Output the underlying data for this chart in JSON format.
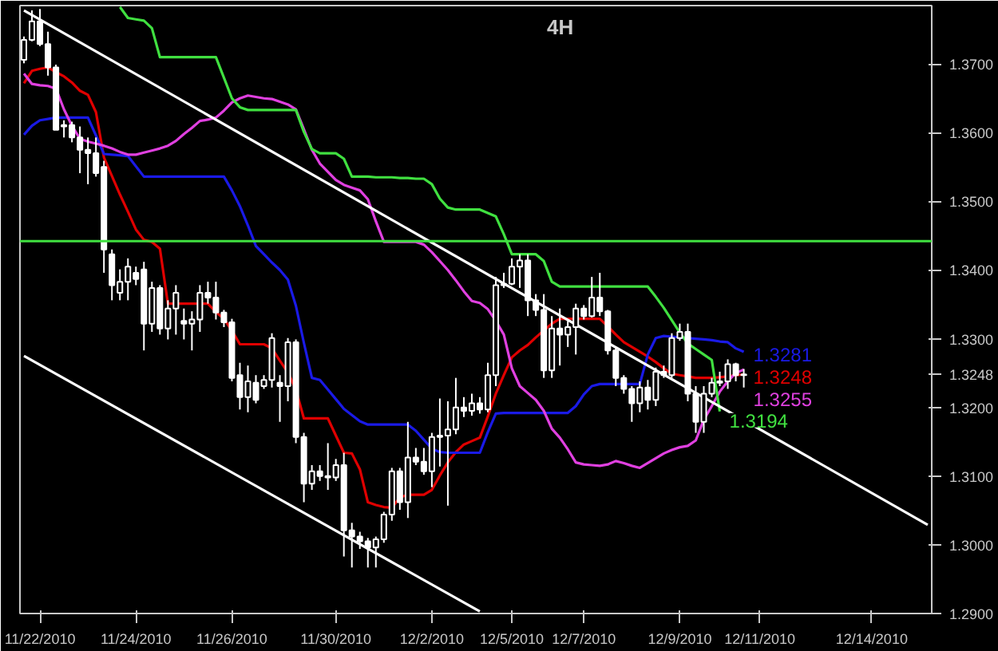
{
  "chart_data": {
    "type": "candlestick",
    "categories": [
      null,
      null,
      "11/22/2010",
      null,
      null,
      null,
      null,
      null,
      null,
      null,
      null,
      null,
      null,
      null,
      "11/24/2010",
      null,
      null,
      null,
      null,
      null,
      null,
      null,
      null,
      null,
      null,
      null,
      "11/26/2010",
      null,
      null,
      null,
      null,
      null,
      null,
      null,
      null,
      null,
      null,
      null,
      null,
      "11/30/2010",
      null,
      null,
      null,
      null,
      null,
      null,
      null,
      null,
      null,
      null,
      null,
      "12/2/2010",
      null,
      null,
      null,
      null,
      null,
      null,
      null,
      null,
      null,
      "12/5/2010",
      null,
      null,
      null,
      null,
      null,
      null,
      null,
      null,
      "12/7/2010",
      null,
      null,
      null,
      null,
      null,
      null,
      null,
      null,
      null,
      null,
      null,
      "12/9/2010",
      null,
      null,
      null,
      null,
      null,
      null,
      null,
      null,
      null,
      "12/11/2010",
      null,
      null,
      null,
      null,
      null,
      null,
      null,
      null,
      null,
      null,
      null,
      null,
      null,
      "12/14/2010",
      null,
      null,
      null,
      null,
      null,
      null,
      null
    ],
    "ohlc": [
      [
        1.3706,
        1.374,
        1.3701,
        1.3735
      ],
      [
        1.3735,
        1.3778,
        1.3733,
        1.3762
      ],
      [
        1.3762,
        1.378,
        1.3726,
        1.3729
      ],
      [
        1.3729,
        1.3747,
        1.3683,
        1.3695
      ],
      [
        1.3695,
        1.3699,
        1.3604,
        1.3604
      ],
      [
        1.3609,
        1.3618,
        1.3593,
        1.3611
      ],
      [
        1.3611,
        1.3616,
        1.3586,
        1.3593
      ],
      [
        1.3593,
        1.3609,
        1.3541,
        1.3575
      ],
      [
        1.3575,
        1.3593,
        1.3525,
        1.357
      ],
      [
        1.357,
        1.3593,
        1.3536,
        1.3541
      ],
      [
        1.355,
        1.3559,
        1.3396,
        1.343
      ],
      [
        1.3423,
        1.343,
        1.3356,
        1.3378
      ],
      [
        1.3367,
        1.3401,
        1.3356,
        1.3383
      ],
      [
        1.3383,
        1.3417,
        1.3356,
        1.3405
      ],
      [
        1.3396,
        1.3405,
        1.3378,
        1.3387
      ],
      [
        1.3401,
        1.3412,
        1.3283,
        1.3322
      ],
      [
        1.3322,
        1.3383,
        1.331,
        1.3374
      ],
      [
        1.3374,
        1.3378,
        1.3306,
        1.3315
      ],
      [
        1.3315,
        1.3356,
        1.3299,
        1.3344
      ],
      [
        1.3344,
        1.3378,
        1.3306,
        1.3367
      ],
      [
        1.3326,
        1.3344,
        1.3299,
        1.3322
      ],
      [
        1.3322,
        1.334,
        1.3283,
        1.3328
      ],
      [
        1.3328,
        1.3378,
        1.331,
        1.3367
      ],
      [
        1.3367,
        1.3383,
        1.3351,
        1.336
      ],
      [
        1.336,
        1.3383,
        1.3328,
        1.3338
      ],
      [
        1.3338,
        1.3342,
        1.3317,
        1.3324
      ],
      [
        1.3324,
        1.3329,
        1.3238,
        1.3243
      ],
      [
        1.3247,
        1.3265,
        1.3197,
        1.3215
      ],
      [
        1.3215,
        1.3261,
        1.3193,
        1.3238
      ],
      [
        1.3236,
        1.3247,
        1.3206,
        1.3211
      ],
      [
        1.3231,
        1.3247,
        1.3227,
        1.324
      ],
      [
        1.324,
        1.3308,
        1.3229,
        1.3301
      ],
      [
        1.3236,
        1.3247,
        1.3179,
        1.3231
      ],
      [
        1.3231,
        1.3301,
        1.3209,
        1.3295
      ],
      [
        1.3295,
        1.3299,
        1.3148,
        1.3157
      ],
      [
        1.3157,
        1.3163,
        1.3062,
        1.3089
      ],
      [
        1.3089,
        1.3116,
        1.308,
        1.3107
      ],
      [
        1.3107,
        1.3116,
        1.3093,
        1.31
      ],
      [
        1.31,
        1.3148,
        1.308,
        1.3098
      ],
      [
        1.3098,
        1.3125,
        1.3093,
        1.3116
      ],
      [
        1.3116,
        1.3134,
        1.2983,
        1.3021
      ],
      [
        1.3021,
        1.3032,
        1.2967,
        1.3012
      ],
      [
        1.3012,
        1.3019,
        1.2994,
        1.3005
      ],
      [
        1.3005,
        1.301,
        1.2967,
        1.2996
      ],
      [
        1.2996,
        1.3012,
        1.2967,
        1.3008
      ],
      [
        1.3008,
        1.3048,
        1.3003,
        1.3044
      ],
      [
        1.3044,
        1.3112,
        1.3035,
        1.3107
      ],
      [
        1.3107,
        1.3112,
        1.3051,
        1.3062
      ],
      [
        1.3062,
        1.3179,
        1.3039,
        1.3127
      ],
      [
        1.3127,
        1.3141,
        1.3116,
        1.3121
      ],
      [
        1.3121,
        1.3141,
        1.3102,
        1.3107
      ],
      [
        1.3107,
        1.3163,
        1.3084,
        1.3157
      ],
      [
        1.3157,
        1.3213,
        1.3114,
        1.3159
      ],
      [
        1.3159,
        1.3209,
        1.3057,
        1.3168
      ],
      [
        1.3168,
        1.3243,
        1.3161,
        1.32
      ],
      [
        1.32,
        1.3215,
        1.3186,
        1.3195
      ],
      [
        1.3195,
        1.322,
        1.3188,
        1.3206
      ],
      [
        1.3206,
        1.3215,
        1.3191,
        1.3197
      ],
      [
        1.3197,
        1.3265,
        1.3193,
        1.3247
      ],
      [
        1.3247,
        1.339,
        1.3231,
        1.3378
      ],
      [
        1.3378,
        1.3396,
        1.3374,
        1.338
      ],
      [
        1.338,
        1.3417,
        1.3378,
        1.3405
      ],
      [
        1.3405,
        1.3423,
        1.3374,
        1.3414
      ],
      [
        1.3414,
        1.3423,
        1.3333,
        1.3356
      ],
      [
        1.3356,
        1.3365,
        1.3333,
        1.3342
      ],
      [
        1.3342,
        1.3365,
        1.3243,
        1.3254
      ],
      [
        1.3254,
        1.3333,
        1.3243,
        1.3315
      ],
      [
        1.3315,
        1.3344,
        1.3261,
        1.3306
      ],
      [
        1.3306,
        1.3326,
        1.3288,
        1.3317
      ],
      [
        1.3317,
        1.3351,
        1.3277,
        1.3344
      ],
      [
        1.3344,
        1.3349,
        1.3328,
        1.3333
      ],
      [
        1.3333,
        1.339,
        1.3331,
        1.336
      ],
      [
        1.336,
        1.3396,
        1.3333,
        1.334
      ],
      [
        1.334,
        1.3342,
        1.3277,
        1.3283
      ],
      [
        1.3283,
        1.3288,
        1.3231,
        1.3243
      ],
      [
        1.3243,
        1.3247,
        1.322,
        1.3227
      ],
      [
        1.3227,
        1.3231,
        1.3179,
        1.3206
      ],
      [
        1.3206,
        1.3238,
        1.3193,
        1.3229
      ],
      [
        1.3229,
        1.324,
        1.3197,
        1.3211
      ],
      [
        1.3211,
        1.3258,
        1.3202,
        1.3252
      ],
      [
        1.3252,
        1.3261,
        1.3243,
        1.3247
      ],
      [
        1.3247,
        1.3308,
        1.3243,
        1.3301
      ],
      [
        1.3301,
        1.3322,
        1.3297,
        1.331
      ],
      [
        1.331,
        1.3322,
        1.3209,
        1.322
      ],
      [
        1.322,
        1.3231,
        1.3163,
        1.3179
      ],
      [
        1.3179,
        1.3231,
        1.3163,
        1.322
      ],
      [
        1.322,
        1.3243,
        1.3215,
        1.3236
      ],
      [
        1.3236,
        1.3252,
        1.3231,
        1.3238
      ],
      [
        1.3238,
        1.327,
        1.3227,
        1.3263
      ],
      [
        1.3263,
        1.3265,
        1.3238,
        1.3247
      ],
      [
        1.3247,
        1.3256,
        1.3229,
        1.3248
      ],
      null,
      null,
      null,
      null,
      null,
      null,
      null,
      null,
      null,
      null,
      null,
      null,
      null,
      null,
      null,
      null,
      null,
      null,
      null,
      null,
      null,
      null,
      null
    ],
    "series": [
      {
        "type": "line",
        "color": "#e00000",
        "values": [
          1.3672,
          1.369,
          1.3693,
          1.3695,
          1.3688,
          1.3682,
          1.3673,
          1.3661,
          1.3655,
          1.363,
          1.3564,
          1.3537,
          1.351,
          1.3485,
          1.3459,
          1.3444,
          1.3441,
          1.3431,
          1.3351,
          1.3351,
          1.3351,
          1.3351,
          1.3351,
          1.3351,
          1.3339,
          1.3329,
          1.3312,
          1.3292,
          1.3292,
          1.3292,
          1.3292,
          1.3286,
          1.3268,
          1.3251,
          1.3226,
          1.3184,
          1.3184,
          1.3184,
          1.3184,
          1.3159,
          1.3134,
          1.3133,
          1.311,
          1.3062,
          1.3058,
          1.3055,
          1.3054,
          1.3069,
          1.3073,
          1.3073,
          1.3073,
          1.308,
          1.3101,
          1.312,
          1.3135,
          1.3146,
          1.3151,
          1.3156,
          1.3187,
          1.322,
          1.3247,
          1.3273,
          1.3283,
          1.3291,
          1.3302,
          1.3312,
          1.3322,
          1.3329,
          1.3329,
          1.3329,
          1.3329,
          1.3329,
          1.3329,
          1.3318,
          1.3306,
          1.3295,
          1.3288,
          1.3281,
          1.3274,
          1.3266,
          1.3257,
          1.3249,
          1.3247,
          1.3245,
          1.3243,
          1.3243,
          1.3243,
          1.3244,
          1.3245,
          1.3247,
          1.3248,
          null,
          null,
          null,
          null,
          null,
          null,
          null,
          null,
          null,
          null,
          null,
          null,
          null,
          null,
          null,
          null,
          null,
          null,
          null,
          null,
          null,
          null,
          null
        ],
        "value_labels": [
          null,
          null,
          null,
          null,
          null,
          null,
          null,
          null,
          null,
          null,
          null,
          null,
          null,
          null,
          null,
          null,
          null,
          null,
          null,
          null,
          null,
          null,
          null,
          null,
          null,
          null,
          null,
          null,
          null,
          null,
          null,
          null,
          null,
          null,
          null,
          null,
          null,
          null,
          null,
          null,
          null,
          null,
          null,
          null,
          null,
          null,
          null,
          null,
          null,
          null,
          null,
          null,
          null,
          null,
          null,
          null,
          null,
          null,
          null,
          null,
          null,
          null,
          null,
          null,
          null,
          null,
          null,
          null,
          null,
          null,
          null,
          null,
          null,
          null,
          null,
          null,
          null,
          null,
          null,
          null,
          null,
          null,
          null,
          null,
          null,
          null,
          null,
          null,
          null,
          null,
          "1.3248",
          null,
          null,
          null,
          null,
          null,
          null,
          null,
          null,
          null,
          null,
          null,
          null,
          null,
          null,
          null,
          null,
          null,
          null,
          null,
          null,
          null,
          null,
          null
        ]
      },
      {
        "type": "line",
        "color": "#1a1ae6",
        "values": [
          1.3597,
          1.361,
          1.3618,
          1.362,
          1.3622,
          1.3622,
          1.3622,
          1.3622,
          1.3622,
          1.3596,
          1.3569,
          1.3568,
          1.3567,
          1.3566,
          1.3551,
          1.3536,
          1.3536,
          1.3536,
          1.3536,
          1.3536,
          1.3536,
          1.3536,
          1.3536,
          1.3536,
          1.3536,
          1.3536,
          1.3516,
          1.3493,
          1.3465,
          1.3435,
          1.3423,
          1.3411,
          1.34,
          1.3386,
          1.3348,
          1.3294,
          1.3243,
          1.324,
          1.3226,
          1.3212,
          1.3198,
          1.3189,
          1.318,
          1.3175,
          1.3175,
          1.3175,
          1.3175,
          1.3175,
          1.3175,
          1.3166,
          1.3153,
          1.314,
          1.3135,
          1.3134,
          1.3134,
          1.3134,
          1.3134,
          1.3134,
          1.3164,
          1.3191,
          1.3192,
          1.3192,
          1.3192,
          1.3192,
          1.3192,
          1.3192,
          1.3192,
          1.3192,
          1.3192,
          1.3202,
          1.3219,
          1.3231,
          1.3234,
          1.3234,
          1.3234,
          1.3234,
          1.3234,
          1.3234,
          1.3277,
          1.3301,
          1.3304,
          1.3303,
          1.3302,
          1.3301,
          1.33,
          1.3299,
          1.3298,
          1.3296,
          1.3295,
          1.3286,
          1.3281,
          null,
          null,
          null,
          null,
          null,
          null,
          null,
          null,
          null,
          null,
          null,
          null,
          null,
          null,
          null,
          null,
          null,
          null,
          null,
          null,
          null,
          null,
          null
        ],
        "value_labels": [
          null,
          null,
          null,
          null,
          null,
          null,
          null,
          null,
          null,
          null,
          null,
          null,
          null,
          null,
          null,
          null,
          null,
          null,
          null,
          null,
          null,
          null,
          null,
          null,
          null,
          null,
          null,
          null,
          null,
          null,
          null,
          null,
          null,
          null,
          null,
          null,
          null,
          null,
          null,
          null,
          null,
          null,
          null,
          null,
          null,
          null,
          null,
          null,
          null,
          null,
          null,
          null,
          null,
          null,
          null,
          null,
          null,
          null,
          null,
          null,
          null,
          null,
          null,
          null,
          null,
          null,
          null,
          null,
          null,
          null,
          null,
          null,
          null,
          null,
          null,
          null,
          null,
          null,
          null,
          null,
          null,
          null,
          null,
          null,
          null,
          null,
          null,
          null,
          null,
          null,
          "1.3281",
          null,
          null,
          null,
          null,
          null,
          null,
          null,
          null,
          null,
          null,
          null,
          null,
          null,
          null,
          null,
          null,
          null,
          null,
          null,
          null,
          null,
          null,
          null
        ]
      },
      {
        "type": "line",
        "color": "#e040e0",
        "values": [
          1.3686,
          1.3671,
          1.3669,
          1.3668,
          1.3664,
          1.3634,
          1.361,
          1.3591,
          1.3587,
          1.3584,
          1.3581,
          1.3577,
          1.3572,
          1.3568,
          1.3568,
          1.3571,
          1.3574,
          1.3577,
          1.3581,
          1.3588,
          1.3598,
          1.3607,
          1.3617,
          1.3619,
          1.3622,
          1.3632,
          1.3644,
          1.365,
          1.3654,
          1.3652,
          1.365,
          1.3649,
          1.3645,
          1.3641,
          1.3634,
          1.3605,
          1.3575,
          1.3555,
          1.3543,
          1.3531,
          1.3524,
          1.352,
          1.3516,
          1.3503,
          1.3471,
          1.3441,
          1.3441,
          1.3441,
          1.3441,
          1.3441,
          1.3437,
          1.3426,
          1.3413,
          1.34,
          1.3385,
          1.3369,
          1.3355,
          1.3352,
          1.3343,
          1.3326,
          1.3306,
          1.3257,
          1.3231,
          1.3221,
          1.3211,
          1.3195,
          1.3169,
          1.3156,
          1.3139,
          1.312,
          1.3117,
          1.3116,
          1.3115,
          1.3117,
          1.3122,
          1.3119,
          1.3115,
          1.3112,
          1.3119,
          1.3126,
          1.3133,
          1.3138,
          1.3142,
          1.3144,
          1.3152,
          1.3182,
          1.3202,
          1.3223,
          1.3238,
          1.325,
          1.3255,
          null,
          null,
          null,
          null,
          null,
          null,
          null,
          null,
          null,
          null,
          null,
          null,
          null,
          null,
          null,
          null,
          null,
          null,
          null,
          null,
          null,
          null,
          null
        ],
        "value_labels": [
          null,
          null,
          null,
          null,
          null,
          null,
          null,
          null,
          null,
          null,
          null,
          null,
          null,
          null,
          null,
          null,
          null,
          null,
          null,
          null,
          null,
          null,
          null,
          null,
          null,
          null,
          null,
          null,
          null,
          null,
          null,
          null,
          null,
          null,
          null,
          null,
          null,
          null,
          null,
          null,
          null,
          null,
          null,
          null,
          null,
          null,
          null,
          null,
          null,
          null,
          null,
          null,
          null,
          null,
          null,
          null,
          null,
          null,
          null,
          null,
          null,
          null,
          null,
          null,
          null,
          null,
          null,
          null,
          null,
          null,
          null,
          null,
          null,
          null,
          null,
          null,
          null,
          null,
          null,
          null,
          null,
          null,
          null,
          null,
          null,
          null,
          null,
          null,
          null,
          null,
          "1.3255",
          null,
          null,
          null,
          null,
          null,
          null,
          null,
          null,
          null,
          null,
          null,
          null,
          null,
          null,
          null,
          null,
          null,
          null,
          null,
          null,
          null,
          null,
          null
        ]
      },
      {
        "type": "line",
        "color": "#40e040",
        "values": [
          null,
          null,
          null,
          null,
          null,
          null,
          null,
          null,
          null,
          null,
          null,
          null,
          1.3783,
          1.3767,
          1.3765,
          1.3763,
          1.3752,
          1.371,
          1.371,
          1.371,
          1.371,
          1.371,
          1.371,
          1.371,
          1.371,
          1.368,
          1.365,
          1.3637,
          1.3633,
          1.3633,
          1.3633,
          1.3633,
          1.3633,
          1.3633,
          1.3633,
          1.3601,
          1.3576,
          1.357,
          1.357,
          1.357,
          1.3562,
          1.3536,
          1.3536,
          1.3536,
          1.3535,
          1.3535,
          1.3535,
          1.3534,
          1.3534,
          1.3533,
          1.3533,
          1.3525,
          1.3504,
          1.3491,
          1.3488,
          1.3488,
          1.3488,
          1.3488,
          1.3483,
          1.3478,
          1.3452,
          1.3423,
          1.3423,
          1.3423,
          1.3423,
          1.3413,
          1.3383,
          1.3376,
          1.3376,
          1.3376,
          1.3376,
          1.3376,
          1.3376,
          1.3376,
          1.3376,
          1.3376,
          1.3376,
          1.3376,
          1.3376,
          1.3361,
          1.3345,
          1.3327,
          1.3309,
          1.3293,
          1.3285,
          1.3277,
          1.3269,
          1.3194,
          null,
          null,
          null,
          null,
          null,
          null,
          null,
          null,
          null,
          null,
          null,
          null,
          null,
          null,
          null,
          null,
          null,
          null,
          null,
          null,
          null,
          null,
          null,
          null,
          null,
          null
        ],
        "value_labels": [
          null,
          null,
          null,
          null,
          null,
          null,
          null,
          null,
          null,
          null,
          null,
          null,
          null,
          null,
          null,
          null,
          null,
          null,
          null,
          null,
          null,
          null,
          null,
          null,
          null,
          null,
          null,
          null,
          null,
          null,
          null,
          null,
          null,
          null,
          null,
          null,
          null,
          null,
          null,
          null,
          null,
          null,
          null,
          null,
          null,
          null,
          null,
          null,
          null,
          null,
          null,
          null,
          null,
          null,
          null,
          null,
          null,
          null,
          null,
          null,
          null,
          null,
          null,
          null,
          null,
          null,
          null,
          null,
          null,
          null,
          null,
          null,
          null,
          null,
          null,
          null,
          null,
          null,
          null,
          null,
          null,
          null,
          null,
          null,
          null,
          null,
          null,
          "1.3194",
          null,
          null,
          null,
          null,
          null,
          null,
          null,
          null,
          null,
          null,
          null,
          null,
          null,
          null,
          null,
          null,
          null,
          null,
          null,
          null,
          null,
          null,
          null,
          null,
          null,
          null
        ]
      },
      {
        "type": "line",
        "color": "#ffffff",
        "values": [
          1.3778,
          null,
          null,
          null,
          null,
          null,
          null,
          null,
          null,
          null,
          null,
          null,
          null,
          null,
          null,
          null,
          null,
          null,
          null,
          null,
          null,
          null,
          null,
          null,
          null,
          null,
          null,
          null,
          null,
          null,
          null,
          null,
          null,
          null,
          null,
          null,
          null,
          null,
          null,
          null,
          null,
          null,
          null,
          null,
          null,
          null,
          null,
          null,
          null,
          null,
          null,
          null,
          null,
          null,
          null,
          null,
          null,
          null,
          null,
          null,
          null,
          null,
          null,
          null,
          null,
          null,
          null,
          null,
          null,
          null,
          null,
          null,
          null,
          null,
          null,
          null,
          null,
          null,
          null,
          null,
          null,
          null,
          null,
          null,
          null,
          null,
          null,
          null,
          null,
          null,
          null,
          null,
          null,
          null,
          null,
          null,
          null,
          null,
          null,
          null,
          null,
          null,
          null,
          null,
          null,
          null,
          null,
          null,
          null,
          null,
          null,
          null,
          null,
          1.3029
        ]
      },
      {
        "type": "line",
        "color": "#ffffff",
        "values": [
          1.3275,
          null,
          null,
          null,
          null,
          null,
          null,
          null,
          null,
          null,
          null,
          null,
          null,
          null,
          null,
          null,
          null,
          null,
          null,
          null,
          null,
          null,
          null,
          null,
          null,
          null,
          null,
          null,
          null,
          null,
          null,
          null,
          null,
          null,
          null,
          null,
          null,
          null,
          null,
          null,
          null,
          null,
          null,
          null,
          null,
          null,
          null,
          null,
          null,
          null,
          null,
          null,
          null,
          null,
          null,
          null,
          null,
          1.2903,
          null,
          null,
          null,
          null,
          null,
          null,
          null,
          null,
          null,
          null,
          null,
          null,
          null,
          null,
          null,
          null,
          null,
          null,
          null,
          null,
          null,
          null,
          null,
          null,
          null,
          null,
          null,
          null,
          null,
          null,
          null,
          null,
          null,
          null,
          null,
          null,
          null,
          null,
          null,
          null,
          null,
          null,
          null,
          null,
          null,
          null,
          null,
          null,
          null,
          null,
          null,
          null,
          null,
          null,
          null,
          null
        ]
      }
    ],
    "ylim": [
      1.29,
      1.3785
    ],
    "yticks": [
      {
        "value": 1.29,
        "label": "1.2900"
      },
      {
        "value": 1.3,
        "label": "1.3000"
      },
      {
        "value": 1.31,
        "label": "1.3100"
      },
      {
        "value": 1.32,
        "label": "1.3200"
      },
      {
        "value": 1.3248,
        "label": "1.3248"
      },
      {
        "value": 1.33,
        "label": "1.3300"
      },
      {
        "value": 1.34,
        "label": "1.3400"
      },
      {
        "value": 1.35,
        "label": "1.3500"
      },
      {
        "value": 1.36,
        "label": "1.3600"
      },
      {
        "value": 1.37,
        "label": "1.3700"
      }
    ],
    "ref_lines": [
      {
        "axis": "y",
        "value": 1.3442,
        "color": "#40e040"
      }
    ],
    "annotations": [
      "4H"
    ]
  }
}
